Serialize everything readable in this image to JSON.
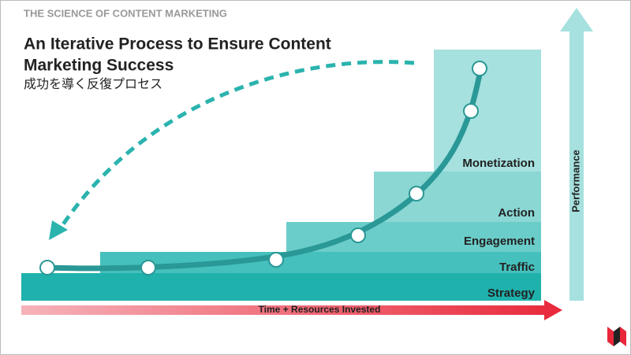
{
  "header": {
    "kicker": "THE SCIENCE OF CONTENT MARKETING",
    "title_line1": "An Iterative Process to Ensure Content",
    "title_line2": "Marketing Success",
    "subtitle": "成功を導く反復プロセス"
  },
  "stages": [
    "Strategy",
    "Traffic",
    "Engagement",
    "Action",
    "Monetization"
  ],
  "x_axis_label": "Time + Resources Invested",
  "y_axis_label": "Performance"
}
